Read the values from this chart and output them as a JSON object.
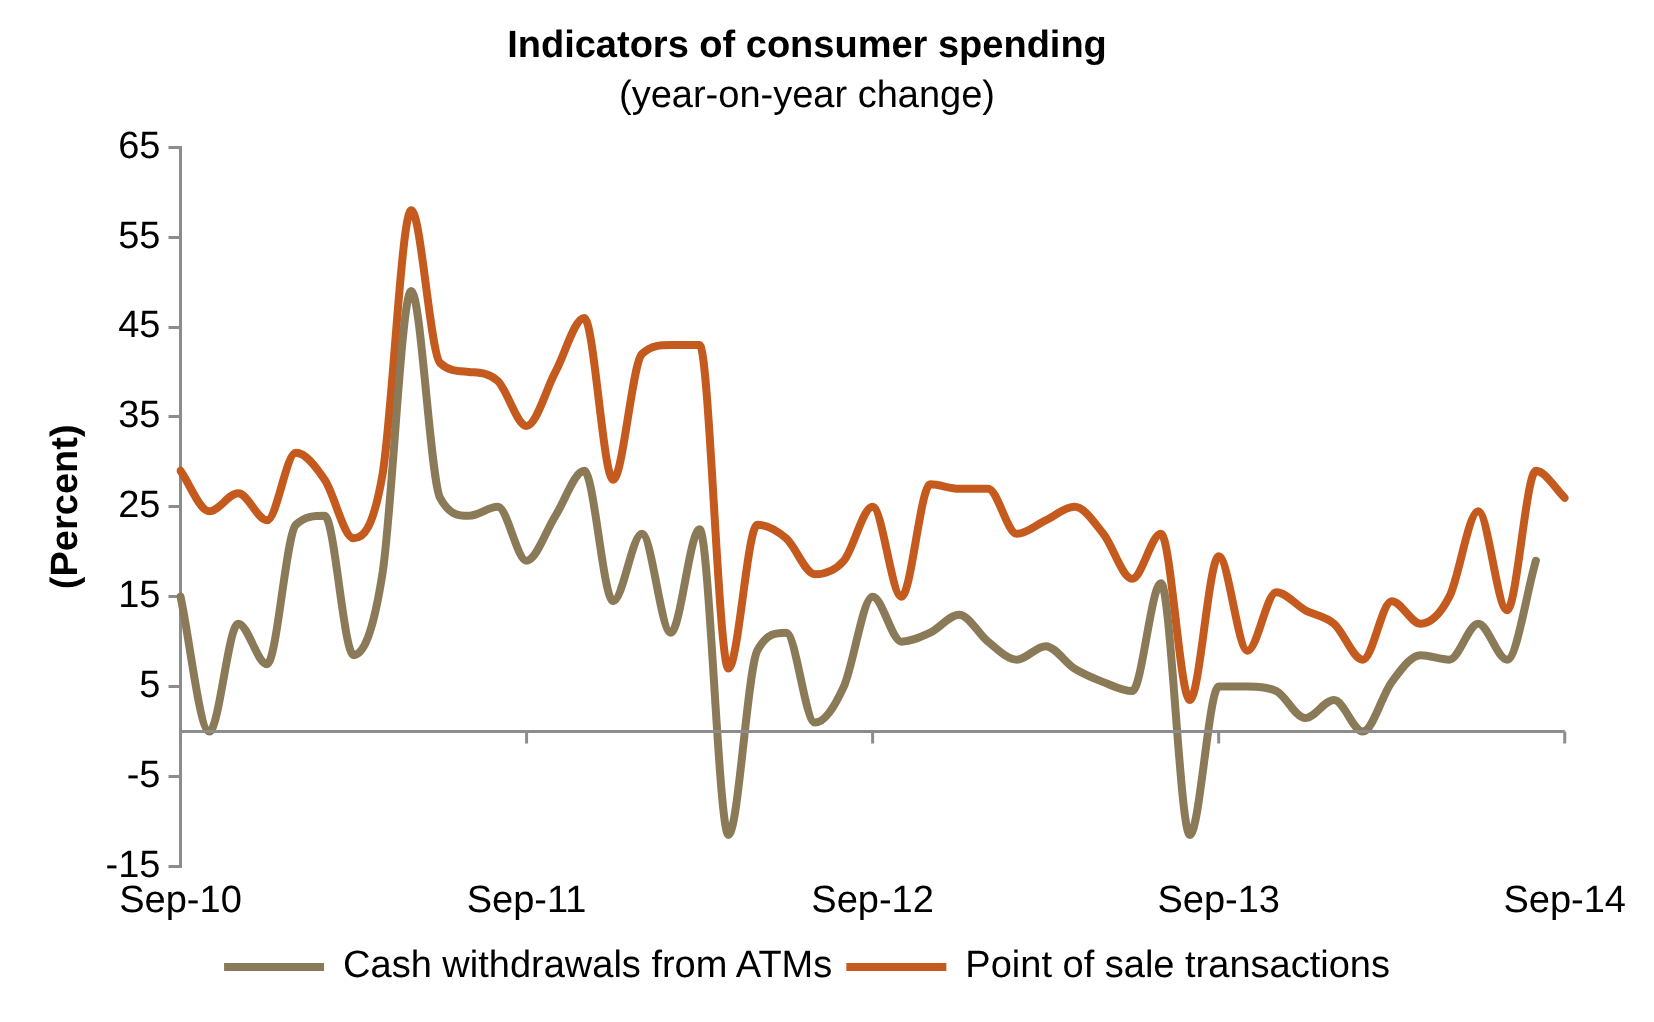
{
  "chart_data": {
    "type": "line",
    "title": "Indicators of consumer spending",
    "subtitle": "(year-on-year change)",
    "ylabel": "(Percent)",
    "categories": [
      "Sep-10",
      null,
      null,
      null,
      null,
      null,
      null,
      null,
      null,
      null,
      null,
      null,
      "Sep-11",
      null,
      null,
      null,
      null,
      null,
      null,
      null,
      null,
      null,
      null,
      null,
      "Sep-12",
      null,
      null,
      null,
      null,
      null,
      null,
      null,
      null,
      null,
      null,
      null,
      "Sep-13",
      null,
      null,
      null,
      null,
      null,
      null,
      null,
      null,
      null,
      null,
      null,
      "Sep-14"
    ],
    "series": [
      {
        "name": "Cash withdrawals from ATMs",
        "color": "#8b7a58",
        "values": [
          15,
          0,
          12,
          7.5,
          23,
          24,
          8.5,
          17.5,
          49,
          26,
          24,
          25,
          19,
          24,
          29,
          14.5,
          22,
          11,
          22.5,
          -11.5,
          9,
          11,
          1,
          5,
          15,
          10,
          11,
          13,
          10,
          8,
          9.5,
          7,
          5.5,
          4.5,
          16.5,
          -11.5,
          5,
          5,
          4.5,
          1.5,
          3.5,
          0,
          5.5,
          8.5,
          8,
          12,
          8,
          19,
          null
        ]
      },
      {
        "name": "Point of sale transactions",
        "color": "#c55a1e",
        "values": [
          29,
          24.5,
          26.5,
          23.5,
          31,
          28,
          21.5,
          28.5,
          58,
          41,
          40,
          39,
          34,
          40,
          46,
          28,
          42,
          43,
          43,
          7,
          23,
          21.5,
          17.5,
          19,
          25,
          15,
          27.5,
          27,
          27,
          22,
          23.5,
          25,
          22,
          17,
          22,
          3.5,
          19.5,
          9,
          15.5,
          13.5,
          12,
          8,
          14.5,
          12,
          15,
          24.5,
          13.5,
          29,
          26
        ]
      }
    ],
    "ylim": [
      -15,
      65
    ],
    "yticks": [
      -15,
      -5,
      5,
      15,
      25,
      35,
      45,
      55,
      65
    ],
    "grid": false,
    "legend": "bottom",
    "marker": "none",
    "line_style": "solid"
  }
}
